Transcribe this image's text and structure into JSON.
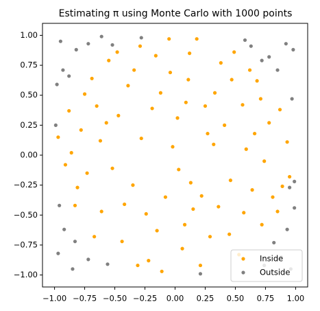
{
  "chart_data": {
    "type": "scatter",
    "title": "Estimating π using Monte Carlo with 1000 points",
    "xlim": [
      -1.1,
      1.1
    ],
    "ylim": [
      -1.1,
      1.1
    ],
    "xticks": [
      {
        "value": -1,
        "label": "−1.00"
      },
      {
        "value": -0.75,
        "label": "−0.75"
      },
      {
        "value": -0.5,
        "label": "−0.50"
      },
      {
        "value": -0.25,
        "label": "−0.25"
      },
      {
        "value": 0,
        "label": "0.00"
      },
      {
        "value": 0.25,
        "label": "0.25"
      },
      {
        "value": 0.5,
        "label": "0.50"
      },
      {
        "value": 0.75,
        "label": "0.75"
      },
      {
        "value": 1,
        "label": "1.00"
      }
    ],
    "yticks": [
      {
        "value": -1,
        "label": "−1.00"
      },
      {
        "value": -0.75,
        "label": "−0.75"
      },
      {
        "value": -0.5,
        "label": "−0.50"
      },
      {
        "value": -0.25,
        "label": "−0.25"
      },
      {
        "value": 0,
        "label": "0.00"
      },
      {
        "value": 0.25,
        "label": "0.25"
      },
      {
        "value": 0.5,
        "label": "0.50"
      },
      {
        "value": 0.75,
        "label": "0.75"
      },
      {
        "value": 1,
        "label": "1.00"
      }
    ],
    "legend": "lower right",
    "series": [
      {
        "name": "Inside",
        "color": "#ffa500",
        "x": [
          0.12,
          -0.34,
          0.56,
          -0.78,
          0.03,
          0.45,
          -0.22,
          0.81,
          -0.61,
          0.27,
          -0.05,
          0.68,
          -0.91,
          0.93,
          -0.47,
          0.15,
          -0.12,
          0.38,
          -0.69,
          0.72,
          -0.35,
          0.59,
          -0.15,
          0.21,
          -0.83,
          0.87,
          -0.55,
          0.02,
          0.46,
          -0.28,
          0.33,
          -0.73,
          0.11,
          -0.44,
          0.64,
          -0.19,
          0.78,
          -0.62,
          0.29,
          -0.08,
          0.49,
          -0.88,
          0.95,
          -0.31,
          0.18,
          -0.52,
          0.74,
          -0.16,
          0.41,
          -0.67,
          0.06,
          0.85,
          -0.97,
          0.53,
          -0.39,
          0.25,
          -0.75,
          0.62,
          -0.02,
          0.36,
          -0.57,
          0.09,
          -0.24,
          0.71,
          -0.86,
          0.47,
          -0.42,
          0.13,
          0.89,
          -0.11,
          0.57,
          -0.65,
          0.32,
          -0.29,
          0.08,
          -0.81,
          0.66,
          -0.48,
          0.22,
          -0.04
        ],
        "y": [
          0.85,
          0.71,
          0.42,
          0.21,
          -0.12,
          -0.66,
          -0.88,
          -0.35,
          -0.47,
          0.18,
          0.97,
          0.62,
          -0.08,
          0.11,
          0.33,
          -0.45,
          0.52,
          0.77,
          0.64,
          -0.58,
          -0.25,
          0.05,
          -0.63,
          -0.92,
          -0.42,
          0.38,
          0.79,
          0.31,
          -0.21,
          0.14,
          0.52,
          -0.15,
          0.63,
          -0.72,
          -0.29,
          0.39,
          0.27,
          0.12,
          -0.68,
          -0.35,
          0.86,
          0.37,
          -0.18,
          -0.92,
          0.97,
          -0.11,
          -0.05,
          0.83,
          0.25,
          -0.68,
          -0.78,
          -0.47,
          0.15,
          -0.83,
          0.58,
          0.41,
          0.51,
          0.71,
          0.07,
          -0.43,
          0.27,
          0.44,
          -0.49,
          0.47,
          0.02,
          0.63,
          -0.41,
          -0.23,
          -0.26,
          -0.97,
          -0.48,
          0.41,
          0.09,
          0.91,
          -0.58,
          -0.27,
          0.18,
          0.86,
          -0.34,
          0.69
        ]
      },
      {
        "name": "Outside",
        "color": "#808080",
        "x": [
          -0.95,
          -0.82,
          -0.93,
          -0.72,
          -0.98,
          -0.88,
          0.78,
          0.92,
          0.98,
          0.85,
          0.72,
          0.97,
          -0.96,
          -0.92,
          -0.85,
          -0.72,
          -0.97,
          -0.83,
          -0.56,
          0.82,
          0.93,
          0.96,
          0.88,
          0.74,
          0.99,
          0.95,
          -0.61,
          -0.52,
          0.58,
          0.63,
          0.21,
          -0.28,
          0.99,
          -0.99
        ],
        "y": [
          0.95,
          0.88,
          0.71,
          0.93,
          0.59,
          0.66,
          0.82,
          0.93,
          0.88,
          0.71,
          0.79,
          0.47,
          -0.42,
          -0.62,
          -0.95,
          -0.87,
          -0.82,
          -0.72,
          -0.91,
          -0.73,
          -0.62,
          -0.95,
          -0.85,
          -0.92,
          -0.44,
          -0.27,
          0.99,
          0.92,
          0.96,
          0.91,
          -0.99,
          0.98,
          -0.22,
          0.25
        ]
      }
    ]
  }
}
